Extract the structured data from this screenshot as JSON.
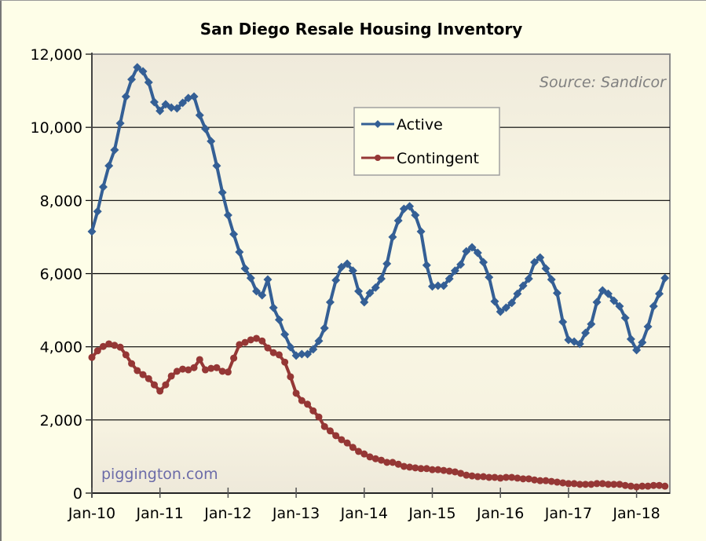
{
  "chart_data": {
    "type": "line",
    "title": "San Diego Resale Housing Inventory",
    "xlabel": "",
    "ylabel": "",
    "ylim": [
      0,
      12000
    ],
    "y_ticks": [
      0,
      2000,
      4000,
      6000,
      8000,
      10000,
      12000
    ],
    "y_tick_labels": [
      "0",
      "2,000",
      "4,000",
      "6,000",
      "8,000",
      "10,000",
      "12,000"
    ],
    "x_tick_labels": [
      "Jan-10",
      "Jan-11",
      "Jan-12",
      "Jan-13",
      "Jan-14",
      "Jan-15",
      "Jan-16",
      "Jan-17",
      "Jan-18"
    ],
    "x_start": "Jan-10",
    "x_end": "Jun-18",
    "x_frequency": "monthly",
    "grid": "horizontal",
    "legend_position": "upper-center",
    "annotations": {
      "source": "Source: Sandicor",
      "watermark": "piggington.com"
    },
    "series": [
      {
        "name": "Active",
        "color": "#345f95",
        "marker": "diamond",
        "values": [
          7150,
          7700,
          8370,
          8950,
          9380,
          10110,
          10840,
          11310,
          11640,
          11530,
          11230,
          10690,
          10450,
          10630,
          10540,
          10520,
          10670,
          10800,
          10840,
          10330,
          9960,
          9620,
          8950,
          8220,
          7600,
          7080,
          6590,
          6140,
          5880,
          5520,
          5410,
          5840,
          5070,
          4740,
          4340,
          3990,
          3760,
          3800,
          3800,
          3930,
          4160,
          4510,
          5220,
          5820,
          6180,
          6270,
          6080,
          5520,
          5220,
          5470,
          5620,
          5860,
          6270,
          7000,
          7450,
          7770,
          7840,
          7600,
          7150,
          6230,
          5650,
          5670,
          5670,
          5860,
          6080,
          6250,
          6610,
          6720,
          6570,
          6310,
          5900,
          5240,
          4960,
          5070,
          5200,
          5450,
          5670,
          5860,
          6310,
          6440,
          6140,
          5840,
          5470,
          4680,
          4190,
          4140,
          4080,
          4380,
          4620,
          5220,
          5540,
          5450,
          5260,
          5110,
          4790,
          4210,
          3910,
          4120,
          4550,
          5110,
          5450,
          5880
        ]
      },
      {
        "name": "Contingent",
        "color": "#953735",
        "marker": "circle",
        "values": [
          3710,
          3890,
          4010,
          4080,
          4040,
          3990,
          3780,
          3540,
          3350,
          3240,
          3130,
          2960,
          2790,
          2960,
          3200,
          3330,
          3390,
          3370,
          3430,
          3650,
          3370,
          3410,
          3430,
          3330,
          3310,
          3690,
          4060,
          4120,
          4190,
          4230,
          4160,
          3970,
          3840,
          3780,
          3580,
          3180,
          2730,
          2530,
          2430,
          2250,
          2080,
          1820,
          1700,
          1570,
          1460,
          1370,
          1250,
          1140,
          1070,
          990,
          940,
          900,
          840,
          840,
          790,
          730,
          710,
          690,
          670,
          670,
          640,
          640,
          620,
          600,
          580,
          540,
          490,
          470,
          450,
          450,
          430,
          430,
          410,
          430,
          430,
          410,
          390,
          390,
          360,
          340,
          340,
          320,
          300,
          280,
          260,
          260,
          240,
          240,
          240,
          260,
          260,
          240,
          240,
          240,
          210,
          190,
          170,
          190,
          190,
          210,
          210,
          190
        ]
      }
    ]
  }
}
